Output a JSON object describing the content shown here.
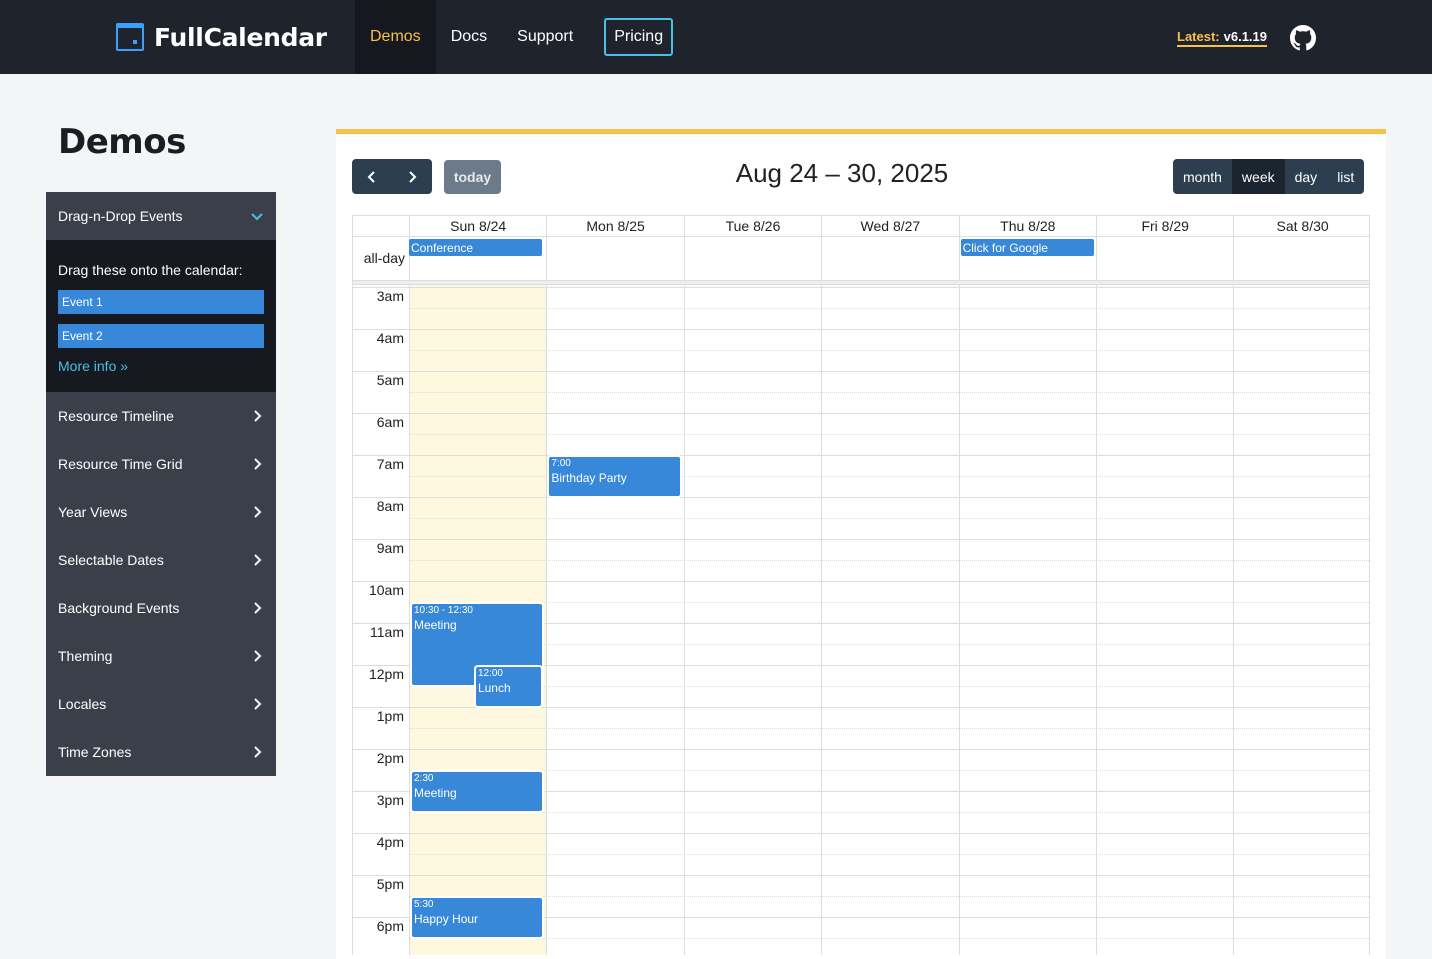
{
  "nav": {
    "brand": "FullCalendar",
    "items": [
      "Demos",
      "Docs",
      "Support"
    ],
    "pricing": "Pricing",
    "latest_label": "Latest:",
    "latest_version": "v6.1.19"
  },
  "page": {
    "title": "Demos"
  },
  "sidebar": {
    "open_section": "Drag-n-Drop Events",
    "hint": "Drag these onto the calendar:",
    "drag_events": [
      "Event 1",
      "Event 2"
    ],
    "more_info": "More info »",
    "items": [
      "Resource Timeline",
      "Resource Time Grid",
      "Year Views",
      "Selectable Dates",
      "Background Events",
      "Theming",
      "Locales",
      "Time Zones"
    ]
  },
  "calendar": {
    "today_btn": "today",
    "title": "Aug 24 – 30, 2025",
    "views": [
      "month",
      "week",
      "day",
      "list"
    ],
    "active_view": "week",
    "days": [
      "Sun 8/24",
      "Mon 8/25",
      "Tue 8/26",
      "Wed 8/27",
      "Thu 8/28",
      "Fri 8/29",
      "Sat 8/30"
    ],
    "allday_label": "all-day",
    "allday_events": [
      {
        "title": "Conference",
        "day": "Sun 8/24"
      },
      {
        "title": "Click for Google",
        "day": "Thu 8/28"
      }
    ],
    "hours": [
      "3am",
      "4am",
      "5am",
      "6am",
      "7am",
      "8am",
      "9am",
      "10am",
      "11am",
      "12pm",
      "1pm",
      "2pm",
      "3pm",
      "4pm",
      "5pm",
      "6pm"
    ],
    "timed_events": [
      {
        "time": "7:00",
        "title": "Birthday Party",
        "day": "Mon 8/25"
      },
      {
        "time": "10:30 - 12:30",
        "title": "Meeting",
        "day": "Sun 8/24"
      },
      {
        "time": "12:00",
        "title": "Lunch",
        "day": "Sun 8/24"
      },
      {
        "time": "2:30",
        "title": "Meeting",
        "day": "Sun 8/24"
      },
      {
        "time": "5:30",
        "title": "Happy Hour",
        "day": "Sun 8/24"
      }
    ]
  },
  "colors": {
    "accent": "#f8c04c",
    "event": "#3788d8",
    "topbar": "#1f232c",
    "button": "#2c3e50"
  }
}
